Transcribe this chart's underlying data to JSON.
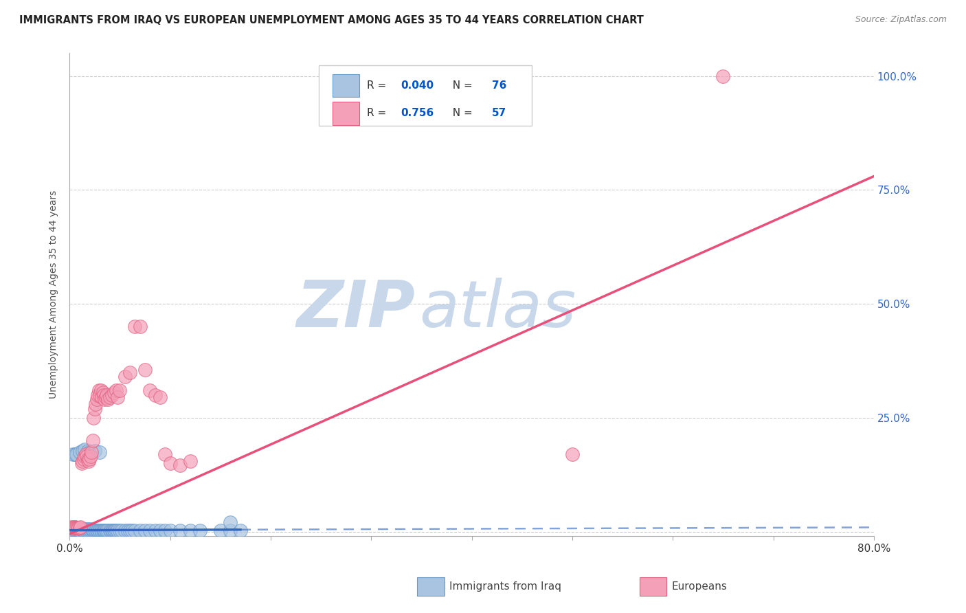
{
  "title": "IMMIGRANTS FROM IRAQ VS EUROPEAN UNEMPLOYMENT AMONG AGES 35 TO 44 YEARS CORRELATION CHART",
  "source": "Source: ZipAtlas.com",
  "ylabel": "Unemployment Among Ages 35 to 44 years",
  "xlim": [
    0.0,
    0.8
  ],
  "ylim": [
    -0.01,
    1.05
  ],
  "x_ticks": [
    0.0,
    0.1,
    0.2,
    0.3,
    0.4,
    0.5,
    0.6,
    0.7,
    0.8
  ],
  "y_ticks": [
    0.0,
    0.25,
    0.5,
    0.75,
    1.0
  ],
  "right_y_tick_labels": [
    "",
    "25.0%",
    "50.0%",
    "75.0%",
    "100.0%"
  ],
  "iraq_color": "#a8c4e0",
  "iraq_edge_color": "#6699cc",
  "european_color": "#f4a0b8",
  "european_edge_color": "#e06080",
  "iraq_R": 0.04,
  "iraq_N": 76,
  "european_R": 0.756,
  "european_N": 57,
  "legend_color": "#0055cc",
  "iraq_trend_color": "#3366bb",
  "european_trend_color": "#e8507a",
  "watermark_zip": "ZIP",
  "watermark_atlas": "atlas",
  "watermark_color": "#c8d8ea",
  "background_color": "#ffffff",
  "grid_color": "#cccccc",
  "iraq_scatter_x": [
    0.002,
    0.003,
    0.004,
    0.005,
    0.006,
    0.007,
    0.008,
    0.009,
    0.01,
    0.011,
    0.012,
    0.013,
    0.014,
    0.015,
    0.016,
    0.017,
    0.018,
    0.019,
    0.02,
    0.021,
    0.022,
    0.023,
    0.024,
    0.025,
    0.026,
    0.027,
    0.028,
    0.029,
    0.03,
    0.031,
    0.032,
    0.033,
    0.034,
    0.035,
    0.036,
    0.037,
    0.038,
    0.04,
    0.041,
    0.042,
    0.043,
    0.044,
    0.045,
    0.046,
    0.048,
    0.05,
    0.052,
    0.055,
    0.058,
    0.06,
    0.062,
    0.065,
    0.07,
    0.075,
    0.08,
    0.085,
    0.09,
    0.095,
    0.1,
    0.11,
    0.12,
    0.13,
    0.15,
    0.16,
    0.17,
    0.003,
    0.005,
    0.007,
    0.01,
    0.013,
    0.015,
    0.018,
    0.02,
    0.025,
    0.03,
    0.16
  ],
  "iraq_scatter_y": [
    0.005,
    0.008,
    0.005,
    0.01,
    0.005,
    0.008,
    0.005,
    0.005,
    0.003,
    0.005,
    0.005,
    0.005,
    0.003,
    0.005,
    0.005,
    0.003,
    0.005,
    0.003,
    0.005,
    0.003,
    0.005,
    0.003,
    0.003,
    0.003,
    0.003,
    0.003,
    0.003,
    0.003,
    0.003,
    0.003,
    0.003,
    0.003,
    0.003,
    0.003,
    0.003,
    0.003,
    0.003,
    0.003,
    0.003,
    0.003,
    0.003,
    0.003,
    0.003,
    0.003,
    0.003,
    0.003,
    0.003,
    0.003,
    0.003,
    0.003,
    0.003,
    0.003,
    0.003,
    0.003,
    0.003,
    0.003,
    0.003,
    0.003,
    0.003,
    0.003,
    0.003,
    0.003,
    0.003,
    0.003,
    0.003,
    0.17,
    0.17,
    0.17,
    0.175,
    0.178,
    0.18,
    0.178,
    0.175,
    0.178,
    0.175,
    0.02
  ],
  "european_scatter_x": [
    0.002,
    0.003,
    0.004,
    0.005,
    0.006,
    0.007,
    0.008,
    0.009,
    0.01,
    0.011,
    0.012,
    0.013,
    0.014,
    0.015,
    0.016,
    0.017,
    0.018,
    0.019,
    0.02,
    0.021,
    0.022,
    0.023,
    0.024,
    0.025,
    0.026,
    0.027,
    0.028,
    0.029,
    0.03,
    0.031,
    0.032,
    0.033,
    0.034,
    0.035,
    0.036,
    0.037,
    0.038,
    0.04,
    0.042,
    0.044,
    0.046,
    0.048,
    0.05,
    0.055,
    0.06,
    0.065,
    0.07,
    0.075,
    0.08,
    0.085,
    0.09,
    0.095,
    0.1,
    0.11,
    0.12,
    0.5,
    0.65
  ],
  "european_scatter_y": [
    0.01,
    0.01,
    0.008,
    0.01,
    0.008,
    0.008,
    0.008,
    0.008,
    0.008,
    0.01,
    0.15,
    0.155,
    0.16,
    0.165,
    0.17,
    0.165,
    0.16,
    0.155,
    0.16,
    0.165,
    0.175,
    0.2,
    0.25,
    0.27,
    0.28,
    0.29,
    0.3,
    0.31,
    0.3,
    0.31,
    0.295,
    0.305,
    0.3,
    0.29,
    0.295,
    0.3,
    0.29,
    0.295,
    0.3,
    0.305,
    0.31,
    0.295,
    0.31,
    0.34,
    0.35,
    0.45,
    0.45,
    0.355,
    0.31,
    0.3,
    0.295,
    0.17,
    0.15,
    0.145,
    0.155,
    0.17,
    1.0
  ]
}
